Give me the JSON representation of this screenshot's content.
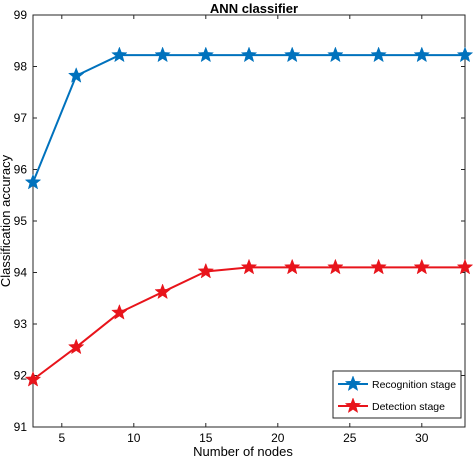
{
  "chart_data": {
    "type": "line",
    "title": "ANN classifier",
    "xlabel": "Number of nodes",
    "ylabel": "Classification accuracy",
    "xlim": [
      3,
      33
    ],
    "ylim": [
      91,
      99
    ],
    "xticks": [
      5,
      10,
      15,
      20,
      25,
      30
    ],
    "yticks": [
      91,
      92,
      93,
      94,
      95,
      96,
      97,
      98,
      99
    ],
    "grid": false,
    "legend_position": "bottom-right",
    "x": [
      3,
      6,
      9,
      12,
      15,
      18,
      21,
      24,
      27,
      30,
      33
    ],
    "series": [
      {
        "name": "Recognition stage",
        "color": "#0072BD",
        "marker": "star",
        "values": [
          95.75,
          97.82,
          98.22,
          98.22,
          98.22,
          98.22,
          98.22,
          98.22,
          98.22,
          98.22,
          98.22
        ]
      },
      {
        "name": "Detection stage",
        "color": "#E8141B",
        "marker": "star",
        "values": [
          91.92,
          92.55,
          93.22,
          93.62,
          94.02,
          94.1,
          94.1,
          94.1,
          94.1,
          94.1,
          94.1
        ]
      }
    ]
  }
}
